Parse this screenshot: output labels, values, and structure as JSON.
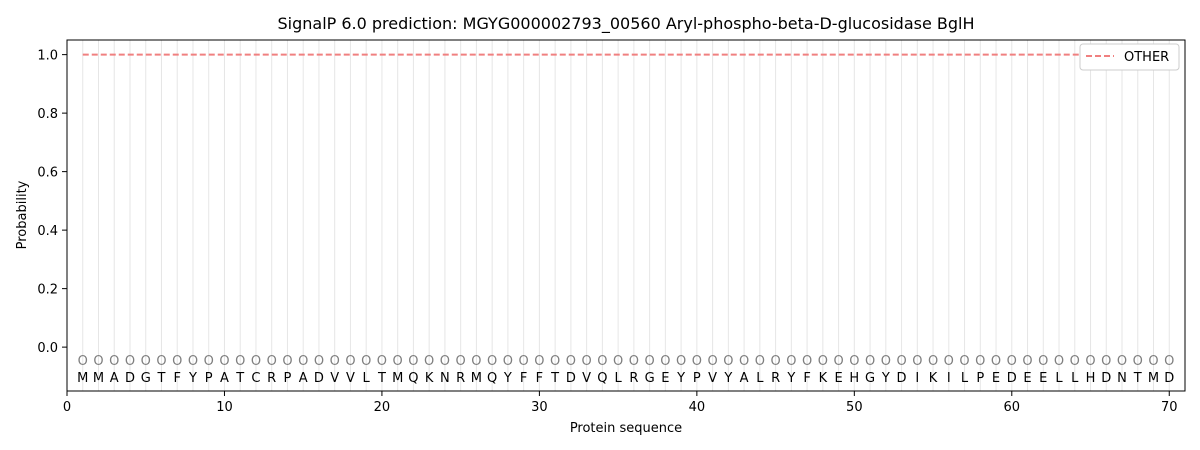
{
  "chart_data": {
    "type": "line",
    "title": "SignalP 6.0 prediction: MGYG000002793_00560 Aryl-phospho-beta-D-glucosidase BglH",
    "xlabel": "Protein sequence",
    "ylabel": "Probability",
    "xlim": [
      0,
      71
    ],
    "ylim": [
      -0.15,
      1.05
    ],
    "xticks": [
      0,
      10,
      20,
      30,
      40,
      50,
      60,
      70
    ],
    "yticks": [
      0.0,
      0.2,
      0.4,
      0.6,
      0.8,
      1.0
    ],
    "ytick_labels": [
      "0.0",
      "0.2",
      "0.4",
      "0.6",
      "0.8",
      "1.0"
    ],
    "sequence": "MMADGTFYPATCRPADVVLTMQKNRMQYFFTDVQLRGEYPVYALRYFKEHGYDIKILPEDEELLHDNTMD",
    "prediction_label": "O",
    "series": [
      {
        "name": "OTHER",
        "color": "#f08080",
        "style": "dashed",
        "x_start": 1,
        "x_end": 70,
        "value": 1.0
      }
    ],
    "legend": {
      "placement": "top-right",
      "entries": [
        "OTHER"
      ]
    },
    "grid": {
      "vertical": true,
      "horizontal": false
    }
  }
}
